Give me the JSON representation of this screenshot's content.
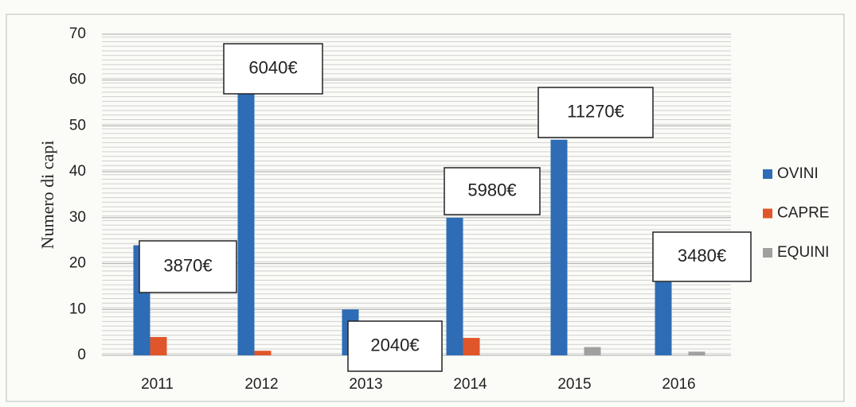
{
  "chart_data": {
    "type": "bar",
    "y_label": "Numero di capi",
    "categories": [
      "2011",
      "2012",
      "2013",
      "2014",
      "2015",
      "2016"
    ],
    "series": [
      {
        "name": "OVINI",
        "color": "#2e6db5",
        "values": [
          24,
          57,
          10,
          30,
          47,
          16
        ]
      },
      {
        "name": "CAPRE",
        "color": "#e0562a",
        "values": [
          4,
          1,
          0,
          3.8,
          0,
          0
        ]
      },
      {
        "name": "EQUINI",
        "color": "#a0a0a0",
        "values": [
          0,
          0,
          0,
          0,
          1.8,
          0.8
        ]
      }
    ],
    "annotations": [
      "3870€",
      "6040€",
      "2040€",
      "5980€",
      "11270€",
      "3480€"
    ],
    "ylim": [
      0,
      70
    ],
    "yticks": [
      0,
      10,
      20,
      30,
      40,
      50,
      60,
      70
    ],
    "grid": true,
    "legend": "right"
  }
}
